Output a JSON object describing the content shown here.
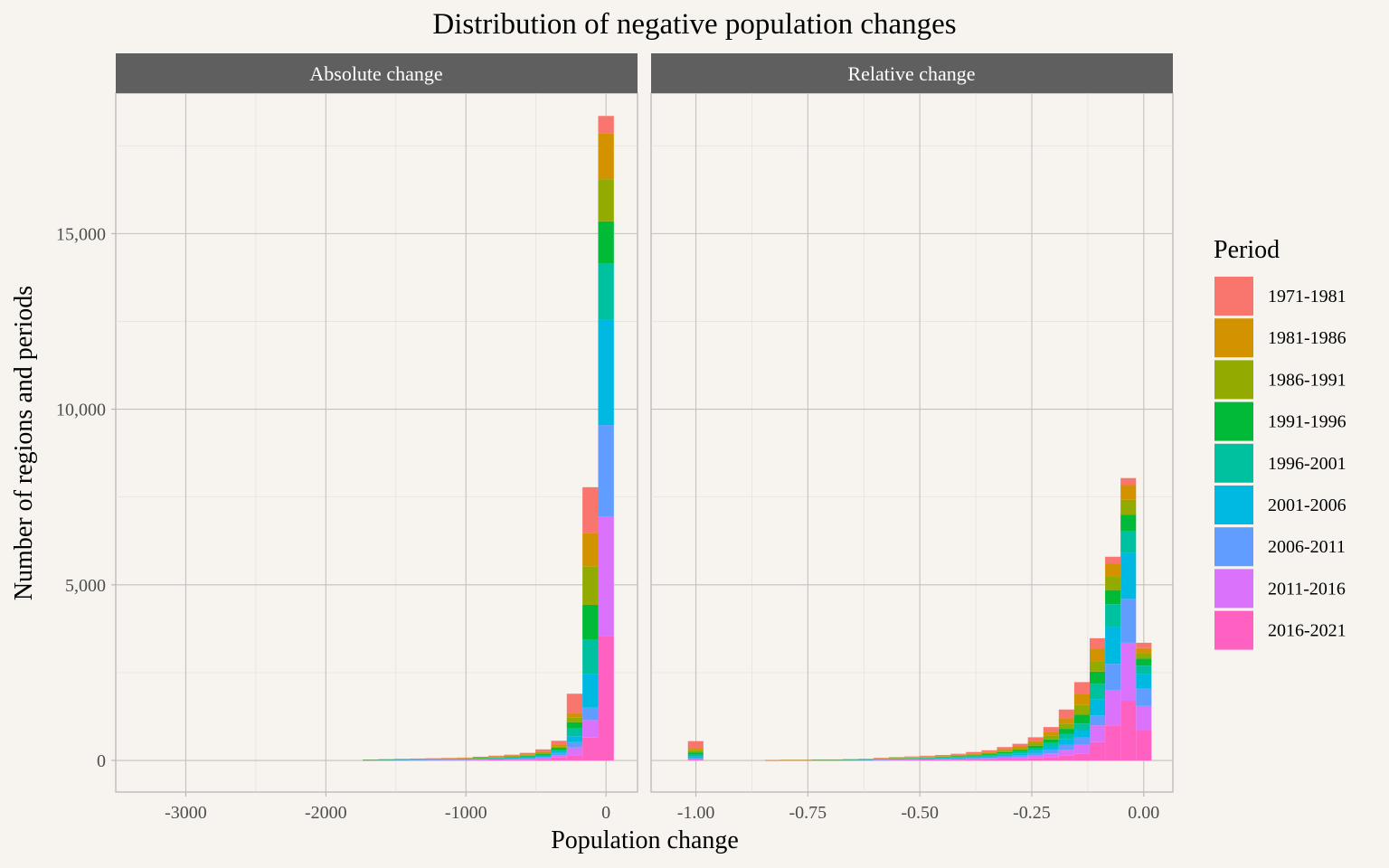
{
  "chart_data": {
    "type": "bar",
    "stacked": true,
    "title": "Distribution of negative population changes",
    "xlabel": "Population change",
    "ylabel": "Number of regions and periods",
    "legend_title": "Period",
    "legend_position": "right",
    "grid": true,
    "series_names": [
      "1971-1981",
      "1981-1986",
      "1986-1991",
      "1991-1996",
      "1996-2001",
      "2001-2006",
      "2006-2011",
      "2011-2016",
      "2016-2021"
    ],
    "colors": [
      "#F8766D",
      "#D39200",
      "#93AA00",
      "#00BA38",
      "#00C19F",
      "#00B9E3",
      "#619CFF",
      "#DB72FB",
      "#FF61C3"
    ],
    "y_ticks": [
      0,
      5000,
      10000,
      15000
    ],
    "y_tick_labels": [
      "0",
      "5,000",
      "10,000",
      "15,000"
    ],
    "ylim": [
      -900,
      19000
    ],
    "panels": [
      {
        "name": "Absolute change",
        "xlim": [
          -3500,
          225
        ],
        "x_ticks": [
          -3000,
          -2000,
          -1000,
          0
        ],
        "x_tick_labels": [
          "-3000",
          "-2000",
          "-1000",
          "0"
        ],
        "bin_width": 112,
        "bins": [
          {
            "x": -1680,
            "values": [
              3,
              3,
              3,
              3,
              3,
              3,
              3,
              3,
              3
            ]
          },
          {
            "x": -1568,
            "values": [
              4,
              4,
              4,
              4,
              4,
              4,
              4,
              4,
              4
            ]
          },
          {
            "x": -1456,
            "values": [
              5,
              5,
              5,
              5,
              5,
              5,
              5,
              5,
              5
            ]
          },
          {
            "x": -1344,
            "values": [
              6,
              6,
              6,
              6,
              6,
              6,
              6,
              6,
              6
            ]
          },
          {
            "x": -1232,
            "values": [
              7,
              7,
              7,
              7,
              7,
              7,
              7,
              7,
              7
            ]
          },
          {
            "x": -1120,
            "values": [
              8,
              8,
              8,
              8,
              8,
              8,
              8,
              8,
              8
            ]
          },
          {
            "x": -1008,
            "values": [
              10,
              9,
              9,
              9,
              9,
              9,
              9,
              9,
              9
            ]
          },
          {
            "x": -896,
            "values": [
              14,
              12,
              12,
              12,
              11,
              11,
              11,
              11,
              11
            ]
          },
          {
            "x": -784,
            "values": [
              20,
              15,
              15,
              15,
              14,
              14,
              14,
              14,
              14
            ]
          },
          {
            "x": -672,
            "values": [
              30,
              18,
              18,
              18,
              16,
              16,
              16,
              16,
              16
            ]
          },
          {
            "x": -560,
            "values": [
              40,
              22,
              22,
              22,
              22,
              22,
              22,
              22,
              22
            ]
          },
          {
            "x": -448,
            "values": [
              65,
              30,
              30,
              32,
              30,
              30,
              32,
              32,
              34
            ]
          },
          {
            "x": -336,
            "values": [
              110,
              45,
              45,
              50,
              50,
              50,
              55,
              60,
              95
            ]
          },
          {
            "x": -224,
            "values": [
              550,
              130,
              130,
              180,
              220,
              170,
              150,
              230,
              140
            ]
          },
          {
            "x": -112,
            "values": [
              1300,
              950,
              1100,
              980,
              1000,
              950,
              350,
              500,
              650
            ]
          },
          {
            "x": 0,
            "values": [
              500,
              1300,
              1200,
              1200,
              1600,
              3000,
              2600,
              3400,
              3550
            ]
          }
        ]
      },
      {
        "name": "Relative change",
        "xlim": [
          -1.1,
          0.065
        ],
        "x_ticks": [
          -1.0,
          -0.75,
          -0.5,
          -0.25,
          0.0
        ],
        "x_tick_labels": [
          "-1.00",
          "-0.75",
          "-0.50",
          "-0.25",
          "0.00"
        ],
        "bin_width": 0.0345,
        "bins": [
          {
            "x": -1.0005,
            "values": [
              200,
              60,
              60,
              60,
              50,
              50,
              30,
              20,
              20
            ]
          },
          {
            "x": -0.828,
            "values": [
              2,
              1,
              1,
              1,
              1,
              1,
              1,
              1,
              1
            ]
          },
          {
            "x": -0.7935,
            "values": [
              3,
              2,
              2,
              2,
              2,
              2,
              2,
              2,
              2
            ]
          },
          {
            "x": -0.759,
            "values": [
              3,
              2,
              2,
              2,
              2,
              2,
              2,
              2,
              2
            ]
          },
          {
            "x": -0.7245,
            "values": [
              4,
              3,
              3,
              3,
              3,
              3,
              3,
              3,
              3
            ]
          },
          {
            "x": -0.69,
            "values": [
              4,
              3,
              3,
              3,
              3,
              3,
              3,
              3,
              3
            ]
          },
          {
            "x": -0.6555,
            "values": [
              5,
              4,
              4,
              4,
              4,
              4,
              4,
              4,
              4
            ]
          },
          {
            "x": -0.621,
            "values": [
              6,
              5,
              5,
              5,
              5,
              5,
              5,
              5,
              5
            ]
          },
          {
            "x": -0.5865,
            "values": [
              10,
              8,
              8,
              8,
              8,
              8,
              8,
              8,
              8
            ]
          },
          {
            "x": -0.552,
            "values": [
              15,
              10,
              10,
              10,
              10,
              10,
              10,
              10,
              10
            ]
          },
          {
            "x": -0.5175,
            "values": [
              18,
              12,
              12,
              12,
              12,
              12,
              12,
              12,
              12
            ]
          },
          {
            "x": -0.483,
            "values": [
              22,
              14,
              14,
              14,
              14,
              14,
              14,
              14,
              14
            ]
          },
          {
            "x": -0.4485,
            "values": [
              26,
              16,
              16,
              16,
              16,
              16,
              16,
              16,
              16
            ]
          },
          {
            "x": -0.414,
            "values": [
              30,
              20,
              20,
              20,
              20,
              20,
              20,
              20,
              20
            ]
          },
          {
            "x": -0.3795,
            "values": [
              40,
              25,
              25,
              25,
              25,
              25,
              25,
              25,
              25
            ]
          },
          {
            "x": -0.345,
            "values": [
              50,
              30,
              30,
              30,
              30,
              30,
              30,
              30,
              30
            ]
          },
          {
            "x": -0.3105,
            "values": [
              60,
              40,
              40,
              40,
              40,
              40,
              40,
              40,
              40
            ]
          },
          {
            "x": -0.276,
            "values": [
              75,
              50,
              50,
              50,
              50,
              50,
              50,
              50,
              50
            ]
          },
          {
            "x": -0.2415,
            "values": [
              100,
              70,
              70,
              70,
              70,
              70,
              70,
              70,
              70
            ]
          },
          {
            "x": -0.207,
            "values": [
              150,
              100,
              100,
              100,
              100,
              100,
              100,
              100,
              100
            ]
          },
          {
            "x": -0.1725,
            "values": [
              250,
              150,
              150,
              150,
              150,
              150,
              150,
              150,
              150
            ]
          },
          {
            "x": -0.138,
            "values": [
              350,
              300,
              280,
              250,
              200,
              200,
              200,
              250,
              200
            ]
          },
          {
            "x": -0.1035,
            "values": [
              300,
              350,
              300,
              350,
              450,
              450,
              280,
              480,
              520
            ]
          },
          {
            "x": -0.069,
            "values": [
              200,
              350,
              400,
              400,
              650,
              1050,
              750,
              1000,
              1000
            ]
          },
          {
            "x": -0.0345,
            "values": [
              200,
              420,
              420,
              480,
              620,
              1300,
              1250,
              1650,
              1700
            ]
          },
          {
            "x": 0.0,
            "values": [
              150,
              150,
              150,
              200,
              250,
              400,
              500,
              700,
              850
            ]
          }
        ]
      }
    ]
  }
}
